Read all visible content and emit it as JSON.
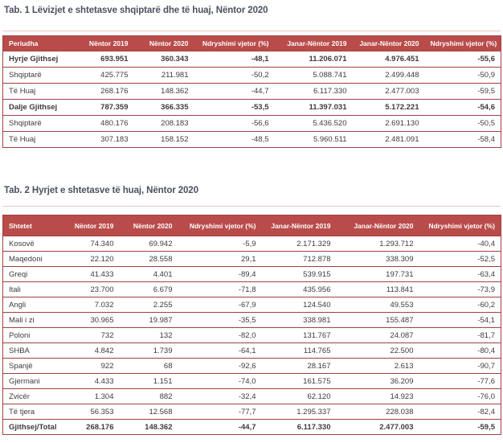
{
  "colors": {
    "header_bg": "#b94c4a",
    "header_text": "#ffffff",
    "table_border": "#a04240",
    "divider": "#e4c7c6",
    "title_text": "#4a5160",
    "cell_text": "#3c3c3c"
  },
  "tables": [
    {
      "title": "Tab. 1 Lëvizjet e shtetasve shqiptarë dhe të huaj, Nëntor 2020",
      "columns": [
        "Periudha",
        "Nëntor 2019",
        "Nëntor 2020",
        "Ndryshimi vjetor (%)",
        "Janar-Nëntor 2019",
        "Janar-Nëntor 2020",
        "Ndryshimi vjetor (%)"
      ],
      "rows": [
        {
          "bold": true,
          "cells": [
            "Hyrje Gjithsej",
            "693.951",
            "360.343",
            "-48,1",
            "11.206.071",
            "4.976.451",
            "-55,6"
          ]
        },
        {
          "bold": false,
          "cells": [
            "Shqiptarë",
            "425.775",
            "211.981",
            "-50,2",
            "5.088.741",
            "2.499.448",
            "-50,9"
          ]
        },
        {
          "bold": false,
          "cells": [
            "Të Huaj",
            "268.176",
            "148.362",
            "-44,7",
            "6.117.330",
            "2.477.003",
            "-59,5"
          ]
        },
        {
          "bold": true,
          "cells": [
            "Dalje Gjithsej",
            "787.359",
            "366.335",
            "-53,5",
            "11.397.031",
            "5.172.221",
            "-54,6"
          ]
        },
        {
          "bold": false,
          "cells": [
            "Shqiptarë",
            "480.176",
            "208.183",
            "-56,6",
            "5.436.520",
            "2.691.130",
            "-50,5"
          ]
        },
        {
          "bold": false,
          "cells": [
            "Të Huaj",
            "307.183",
            "158.152",
            "-48,5",
            "5.960.511",
            "2.481.091",
            "-58,4"
          ]
        }
      ]
    },
    {
      "title": "Tab. 2 Hyrjet e shtetasve të huaj, Nëntor 2020",
      "columns": [
        "Shtetet",
        "Nëntor 2019",
        "Nëntor 2020",
        "Ndryshimi vjetor (%)",
        "Janar-Nëntor 2019",
        "Janar-Nëntor 2020",
        "Ndryshimi vjetor (%)"
      ],
      "rows": [
        {
          "bold": false,
          "cells": [
            "Kosovë",
            "74.340",
            "69.942",
            "-5,9",
            "2.171.329",
            "1.293.712",
            "-40,4"
          ]
        },
        {
          "bold": false,
          "cells": [
            "Maqedoni",
            "22.120",
            "28.558",
            "29,1",
            "712.878",
            "338.309",
            "-52,5"
          ]
        },
        {
          "bold": false,
          "cells": [
            "Greqi",
            "41.433",
            "4.401",
            "-89,4",
            "539.915",
            "197.731",
            "-63,4"
          ]
        },
        {
          "bold": false,
          "cells": [
            "Itali",
            "23.700",
            "6.679",
            "-71,8",
            "435.956",
            "113.841",
            "-73,9"
          ]
        },
        {
          "bold": false,
          "cells": [
            "Angli",
            "7.032",
            "2.255",
            "-67,9",
            "124.540",
            "49.553",
            "-60,2"
          ]
        },
        {
          "bold": false,
          "cells": [
            "Mali i zi",
            "30.965",
            "19.987",
            "-35,5",
            "338.981",
            "155.487",
            "-54,1"
          ]
        },
        {
          "bold": false,
          "cells": [
            "Poloni",
            "732",
            "132",
            "-82,0",
            "131.767",
            "24.087",
            "-81,7"
          ]
        },
        {
          "bold": false,
          "cells": [
            "SHBA",
            "4.842",
            "1.739",
            "-64,1",
            "114.765",
            "22.500",
            "-80,4"
          ]
        },
        {
          "bold": false,
          "cells": [
            "Spanjë",
            "922",
            "68",
            "-92,6",
            "28.167",
            "2.613",
            "-90,7"
          ]
        },
        {
          "bold": false,
          "cells": [
            "Gjermani",
            "4.433",
            "1.151",
            "-74,0",
            "161.575",
            "36.209",
            "-77,6"
          ]
        },
        {
          "bold": false,
          "cells": [
            "Zvicër",
            "1.304",
            "882",
            "-32,4",
            "62.120",
            "14.923",
            "-76,0"
          ]
        },
        {
          "bold": false,
          "cells": [
            "Të tjera",
            "56.353",
            "12.568",
            "-77,7",
            "1.295.337",
            "228.038",
            "-82,4"
          ]
        },
        {
          "bold": true,
          "cells": [
            "Gjithsej/Total",
            "268.176",
            "148.362",
            "-44,7",
            "6.117.330",
            "2.477.003",
            "-59,5"
          ]
        }
      ]
    }
  ]
}
